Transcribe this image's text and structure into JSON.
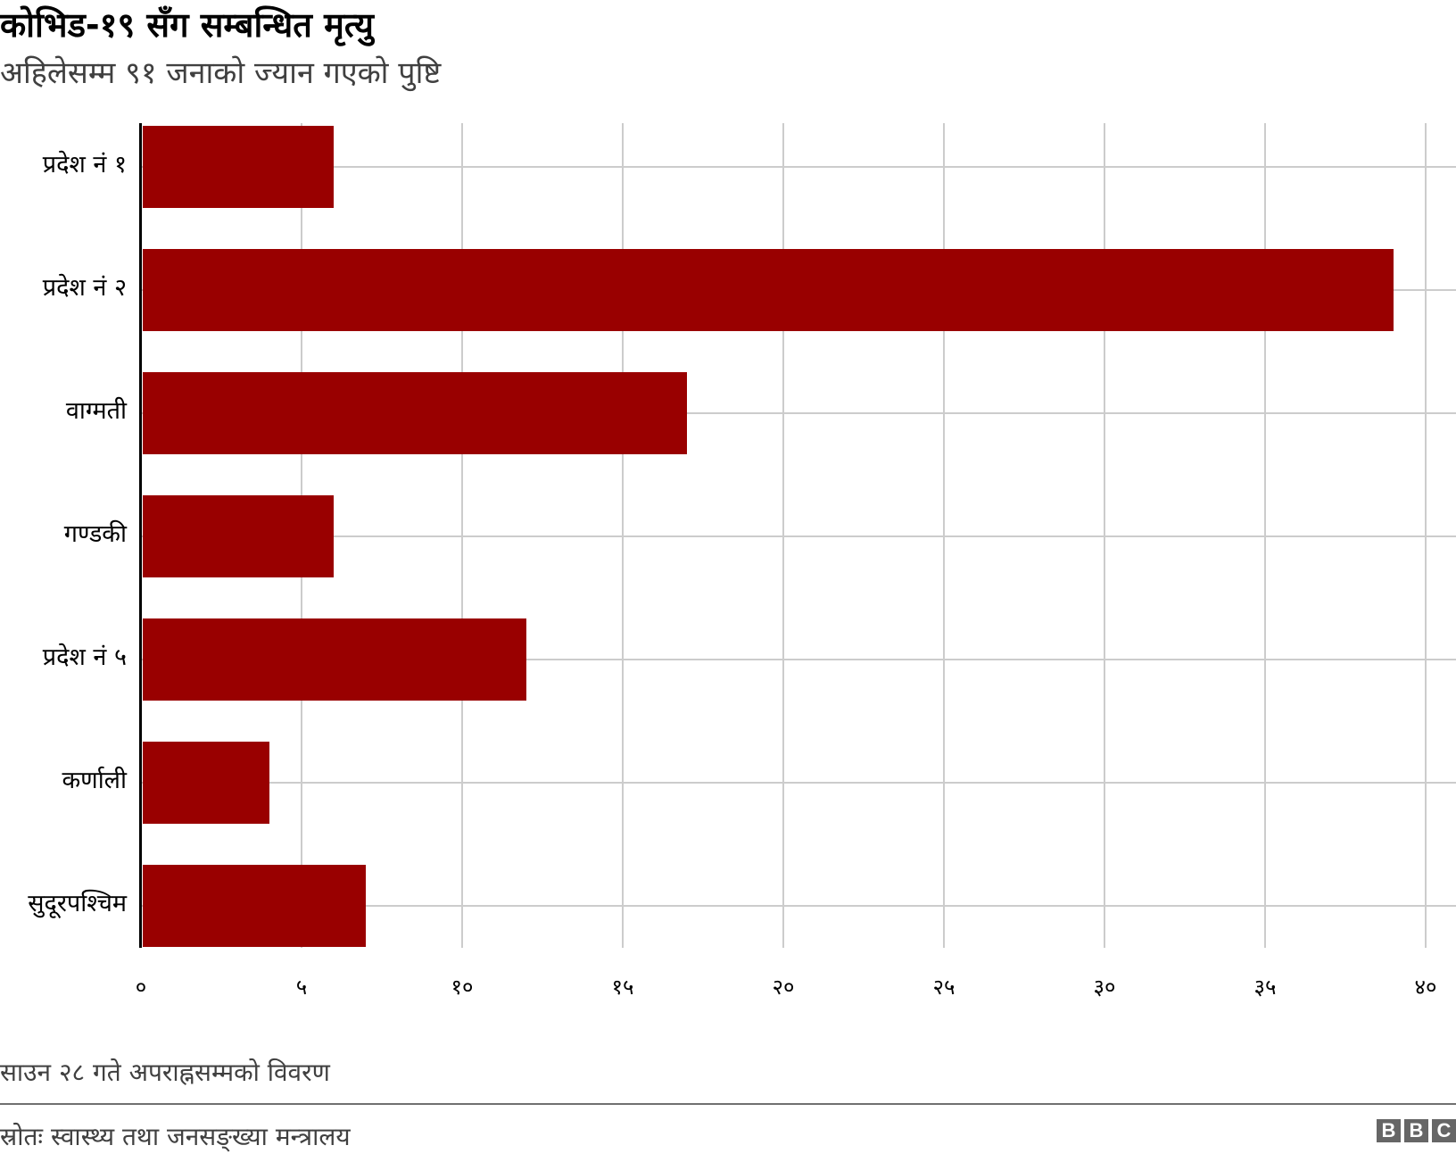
{
  "header": {
    "title": "कोभिड-१९ सँग सम्बन्धित मृत्यु",
    "subtitle": "अहिलेसम्म ९१ जनाको ज्यान गएको पुष्टि"
  },
  "footer": {
    "note": "साउन २८ गते अपराह्नसम्मको विवरण",
    "source": "स्रोतः स्वास्थ्य तथा जनसङ्ख्या मन्त्रालय",
    "logo": [
      "B",
      "B",
      "C"
    ]
  },
  "colors": {
    "bar": "#990000",
    "grid": "#cccccc",
    "axis": "#000000"
  },
  "chart_data": {
    "type": "bar",
    "orientation": "horizontal",
    "title": "कोभिड-१९ सँग सम्बन्धित मृत्यु",
    "subtitle": "अहिलेसम्म ९१ जनाको ज्यान गएको पुष्टि",
    "categories": [
      "प्रदेश नं १",
      "प्रदेश नं २",
      "वाग्मती",
      "गण्डकी",
      "प्रदेश नं ५",
      "कर्णाली",
      "सुदूरपश्चिम"
    ],
    "values": [
      6,
      39,
      17,
      6,
      12,
      4,
      7
    ],
    "xlabel": "",
    "ylabel": "",
    "xlim": [
      0,
      40
    ],
    "xticks": [
      "०",
      "५",
      "१०",
      "१५",
      "२०",
      "२५",
      "३०",
      "३५",
      "४०"
    ],
    "grid": true,
    "legend": null,
    "note": "साउन २८ गते अपराह्नसम्मको विवरण",
    "source": "स्रोतः स्वास्थ्य तथा जनसङ्ख्या मन्त्रालय"
  }
}
